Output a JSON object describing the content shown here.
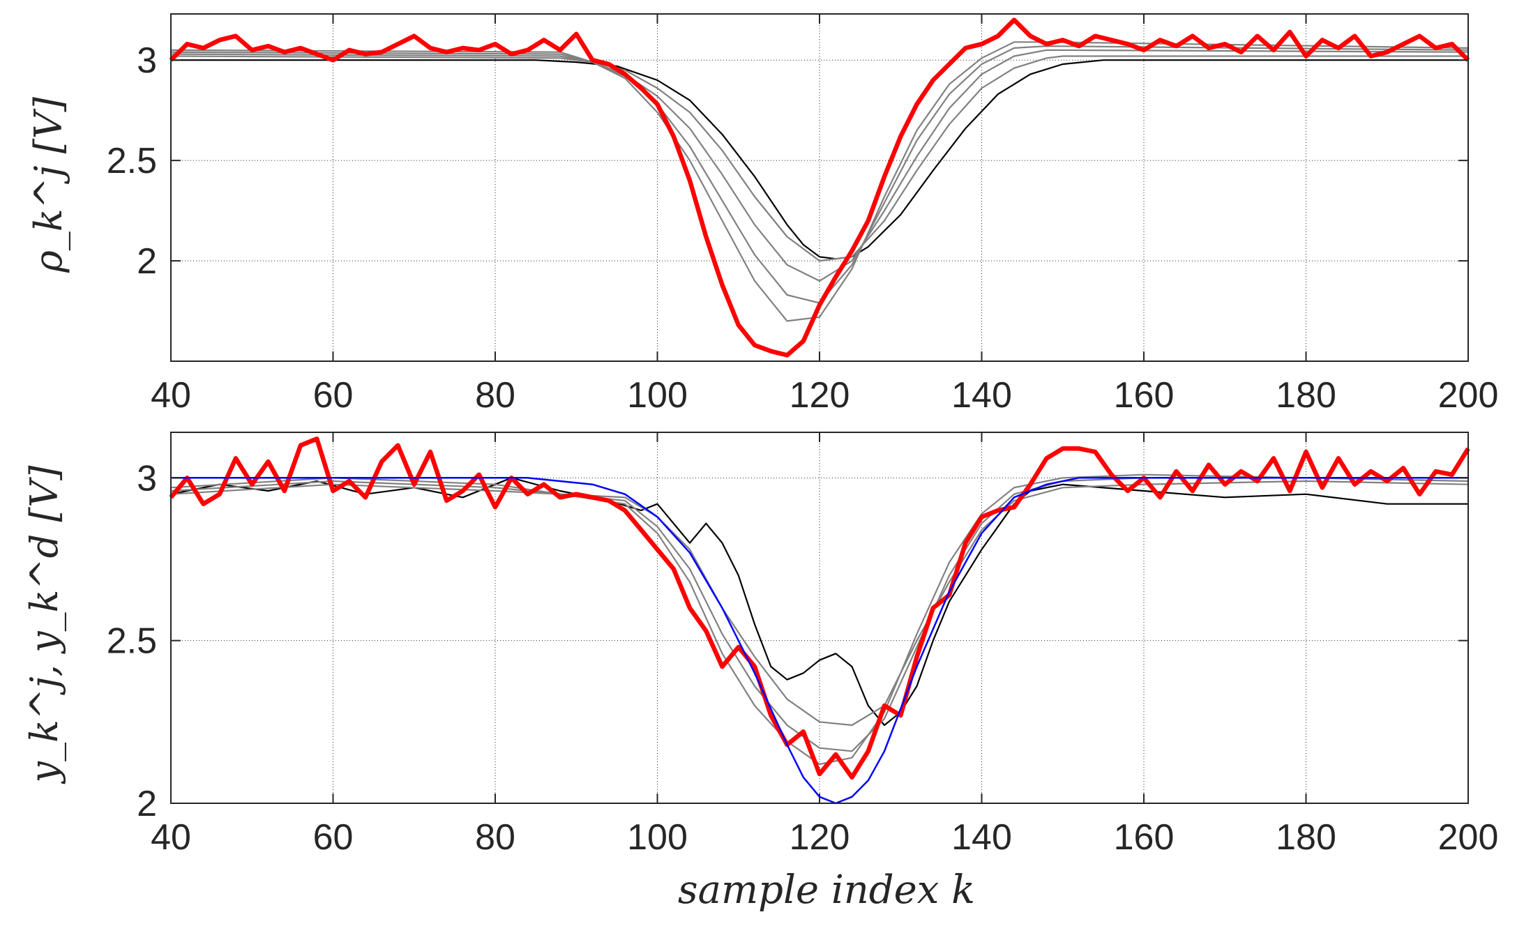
{
  "chart_data": [
    {
      "type": "line",
      "title": "",
      "xlabel": "",
      "ylabel": "ρ_k^j [V]",
      "xlim": [
        40,
        200
      ],
      "ylim": [
        1.5,
        3.23
      ],
      "xticks": [
        40,
        60,
        80,
        100,
        120,
        140,
        160,
        180,
        200
      ],
      "yticks": [
        2,
        2.5,
        3
      ],
      "grid": "partial dotted lines",
      "colors": {
        "reference": "#000000",
        "iterations": "#808080",
        "final": "#ff0000"
      },
      "series": [
        {
          "name": "",
          "role": "reference",
          "x": [
            40,
            85,
            90,
            95,
            100,
            104,
            108,
            112,
            116,
            118,
            120,
            122,
            124,
            126,
            130,
            134,
            138,
            142,
            146,
            150,
            155,
            160,
            200
          ],
          "y": [
            3.0,
            3.0,
            2.99,
            2.97,
            2.9,
            2.8,
            2.63,
            2.42,
            2.18,
            2.08,
            2.02,
            2.01,
            2.02,
            2.07,
            2.23,
            2.45,
            2.66,
            2.83,
            2.93,
            2.98,
            3.0,
            3.0,
            3.0
          ]
        },
        {
          "name": "",
          "role": "iteration",
          "x": [
            40,
            88,
            92,
            96,
            100,
            104,
            108,
            112,
            116,
            120,
            124,
            128,
            132,
            136,
            140,
            144,
            148,
            150,
            200
          ],
          "y": [
            3.02,
            3.01,
            2.99,
            2.95,
            2.86,
            2.74,
            2.55,
            2.32,
            2.12,
            2.0,
            2.02,
            2.2,
            2.45,
            2.68,
            2.86,
            2.96,
            3.01,
            3.02,
            3.02
          ]
        },
        {
          "name": "",
          "role": "iteration",
          "x": [
            40,
            88,
            92,
            96,
            100,
            104,
            108,
            112,
            116,
            120,
            124,
            128,
            132,
            136,
            140,
            144,
            148,
            200
          ],
          "y": [
            3.03,
            3.02,
            2.99,
            2.93,
            2.82,
            2.66,
            2.43,
            2.18,
            1.98,
            1.9,
            2.0,
            2.25,
            2.52,
            2.76,
            2.93,
            3.02,
            3.05,
            3.04
          ]
        },
        {
          "name": "",
          "role": "iteration",
          "x": [
            40,
            88,
            92,
            96,
            100,
            104,
            108,
            112,
            116,
            120,
            124,
            128,
            132,
            136,
            140,
            144,
            148,
            200
          ],
          "y": [
            3.04,
            3.03,
            2.99,
            2.92,
            2.78,
            2.57,
            2.3,
            2.03,
            1.83,
            1.79,
            1.98,
            2.29,
            2.6,
            2.83,
            2.98,
            3.06,
            3.07,
            3.05
          ]
        },
        {
          "name": "",
          "role": "iteration",
          "x": [
            40,
            88,
            92,
            96,
            100,
            104,
            108,
            112,
            116,
            120,
            124,
            128,
            132,
            136,
            140,
            144,
            148,
            200
          ],
          "y": [
            3.05,
            3.04,
            2.99,
            2.91,
            2.74,
            2.5,
            2.2,
            1.9,
            1.7,
            1.72,
            1.96,
            2.32,
            2.65,
            2.88,
            3.01,
            3.09,
            3.09,
            3.06
          ]
        },
        {
          "name": "",
          "role": "final",
          "x": [
            40,
            42,
            44,
            46,
            48,
            50,
            52,
            54,
            56,
            58,
            60,
            62,
            64,
            66,
            68,
            70,
            72,
            74,
            76,
            78,
            80,
            82,
            84,
            86,
            88,
            90,
            92,
            94,
            96,
            98,
            100,
            102,
            104,
            106,
            108,
            110,
            112,
            114,
            116,
            118,
            120,
            122,
            124,
            126,
            128,
            130,
            132,
            134,
            136,
            138,
            140,
            142,
            144,
            146,
            148,
            150,
            152,
            154,
            156,
            158,
            160,
            162,
            164,
            166,
            168,
            170,
            172,
            174,
            176,
            178,
            180,
            182,
            184,
            186,
            188,
            190,
            192,
            194,
            196,
            198,
            200
          ],
          "y": [
            3.0,
            3.08,
            3.06,
            3.1,
            3.12,
            3.05,
            3.07,
            3.04,
            3.06,
            3.03,
            3.0,
            3.05,
            3.03,
            3.04,
            3.08,
            3.12,
            3.06,
            3.04,
            3.06,
            3.05,
            3.08,
            3.03,
            3.05,
            3.1,
            3.05,
            3.13,
            3.0,
            2.98,
            2.93,
            2.86,
            2.78,
            2.62,
            2.4,
            2.12,
            1.88,
            1.68,
            1.58,
            1.55,
            1.53,
            1.6,
            1.78,
            1.92,
            2.05,
            2.2,
            2.42,
            2.62,
            2.78,
            2.9,
            2.98,
            3.06,
            3.08,
            3.12,
            3.2,
            3.12,
            3.08,
            3.1,
            3.07,
            3.12,
            3.1,
            3.08,
            3.05,
            3.1,
            3.07,
            3.12,
            3.06,
            3.08,
            3.04,
            3.12,
            3.05,
            3.14,
            3.02,
            3.1,
            3.06,
            3.12,
            3.02,
            3.04,
            3.08,
            3.12,
            3.06,
            3.08,
            3.0
          ]
        }
      ]
    },
    {
      "type": "line",
      "title": "",
      "xlabel": "sample index k",
      "ylabel": "y_k^j, y_k^d [V]",
      "xlim": [
        40,
        200
      ],
      "ylim": [
        2.0,
        3.14
      ],
      "xticks": [
        40,
        60,
        80,
        100,
        120,
        140,
        160,
        180,
        200
      ],
      "yticks": [
        2,
        2.5,
        3
      ],
      "grid": "partial dotted lines",
      "colors": {
        "first": "#000000",
        "iterations": "#808080",
        "final": "#ff0000",
        "desired": "#0000ff"
      },
      "series": [
        {
          "name": "",
          "role": "first",
          "x": [
            40,
            46,
            52,
            58,
            64,
            70,
            76,
            82,
            88,
            94,
            98,
            100,
            104,
            106,
            108,
            110,
            112,
            114,
            116,
            118,
            120,
            122,
            124,
            126,
            128,
            130,
            132,
            134,
            136,
            138,
            140,
            142,
            144,
            146,
            148,
            150,
            160,
            170,
            180,
            190,
            200
          ],
          "y": [
            2.95,
            2.98,
            2.96,
            2.99,
            2.95,
            2.97,
            2.94,
            3.0,
            2.96,
            2.93,
            2.9,
            2.92,
            2.8,
            2.86,
            2.8,
            2.7,
            2.55,
            2.42,
            2.38,
            2.4,
            2.44,
            2.46,
            2.42,
            2.3,
            2.24,
            2.28,
            2.36,
            2.5,
            2.62,
            2.7,
            2.78,
            2.85,
            2.92,
            2.96,
            2.97,
            2.98,
            2.96,
            2.94,
            2.95,
            2.92,
            2.92
          ]
        },
        {
          "name": "",
          "role": "iteration",
          "x": [
            40,
            60,
            80,
            96,
            100,
            104,
            108,
            112,
            116,
            120,
            124,
            128,
            132,
            136,
            140,
            144,
            150,
            160,
            180,
            200
          ],
          "y": [
            2.95,
            2.98,
            2.96,
            2.94,
            2.88,
            2.78,
            2.6,
            2.45,
            2.32,
            2.25,
            2.24,
            2.3,
            2.5,
            2.68,
            2.84,
            2.93,
            2.97,
            2.98,
            2.99,
            2.98
          ]
        },
        {
          "name": "",
          "role": "iteration",
          "x": [
            40,
            60,
            80,
            96,
            100,
            104,
            108,
            112,
            116,
            120,
            124,
            128,
            132,
            136,
            140,
            144,
            150,
            160,
            180,
            200
          ],
          "y": [
            2.96,
            2.99,
            2.97,
            2.93,
            2.85,
            2.72,
            2.52,
            2.36,
            2.24,
            2.17,
            2.16,
            2.26,
            2.48,
            2.7,
            2.86,
            2.95,
            2.99,
            3.0,
            3.0,
            2.99
          ]
        },
        {
          "name": "",
          "role": "iteration",
          "x": [
            40,
            60,
            80,
            96,
            100,
            104,
            108,
            112,
            116,
            120,
            124,
            128,
            132,
            136,
            140,
            144,
            150,
            160,
            180,
            200
          ],
          "y": [
            2.97,
            3.0,
            2.98,
            2.92,
            2.83,
            2.68,
            2.46,
            2.3,
            2.19,
            2.12,
            2.14,
            2.28,
            2.52,
            2.74,
            2.89,
            2.97,
            3.0,
            3.01,
            3.0,
            3.0
          ]
        },
        {
          "name": "",
          "role": "final",
          "x": [
            40,
            42,
            44,
            46,
            48,
            50,
            52,
            54,
            56,
            58,
            60,
            62,
            64,
            66,
            68,
            70,
            72,
            74,
            76,
            78,
            80,
            82,
            84,
            86,
            88,
            90,
            92,
            94,
            96,
            98,
            100,
            102,
            104,
            106,
            108,
            110,
            112,
            114,
            116,
            118,
            120,
            122,
            124,
            126,
            128,
            130,
            132,
            134,
            136,
            138,
            140,
            142,
            144,
            146,
            148,
            150,
            152,
            154,
            156,
            158,
            160,
            162,
            164,
            166,
            168,
            170,
            172,
            174,
            176,
            178,
            180,
            182,
            184,
            186,
            188,
            190,
            192,
            194,
            196,
            198,
            200
          ],
          "y": [
            2.94,
            3.0,
            2.92,
            2.95,
            3.06,
            2.98,
            3.05,
            2.96,
            3.1,
            3.12,
            2.96,
            2.99,
            2.94,
            3.05,
            3.1,
            2.98,
            3.08,
            2.93,
            2.96,
            3.01,
            2.91,
            3.0,
            2.95,
            2.98,
            2.94,
            2.95,
            2.94,
            2.93,
            2.9,
            2.84,
            2.78,
            2.72,
            2.6,
            2.53,
            2.42,
            2.48,
            2.42,
            2.27,
            2.18,
            2.22,
            2.09,
            2.15,
            2.08,
            2.16,
            2.3,
            2.27,
            2.45,
            2.6,
            2.64,
            2.8,
            2.88,
            2.9,
            2.91,
            2.98,
            3.06,
            3.09,
            3.09,
            3.08,
            3.01,
            2.96,
            3.0,
            2.94,
            3.02,
            2.96,
            3.04,
            2.98,
            3.02,
            2.99,
            3.06,
            2.96,
            3.08,
            2.97,
            3.06,
            2.98,
            3.02,
            2.99,
            3.03,
            2.95,
            3.02,
            3.01,
            3.09
          ]
        },
        {
          "name": "",
          "role": "desired",
          "x": [
            40,
            84,
            88,
            92,
            96,
            100,
            104,
            108,
            112,
            116,
            118,
            120,
            122,
            124,
            126,
            128,
            132,
            136,
            140,
            144,
            148,
            152,
            156,
            160,
            200
          ],
          "y": [
            3.0,
            3.0,
            2.99,
            2.98,
            2.95,
            2.88,
            2.77,
            2.6,
            2.4,
            2.18,
            2.08,
            2.02,
            2.0,
            2.02,
            2.07,
            2.16,
            2.42,
            2.65,
            2.83,
            2.94,
            2.98,
            3.0,
            3.0,
            3.0,
            3.0
          ]
        }
      ]
    }
  ]
}
